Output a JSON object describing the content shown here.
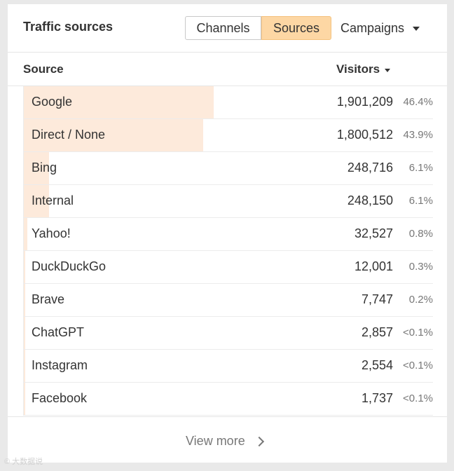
{
  "header": {
    "title": "Traffic sources",
    "tabs": [
      {
        "label": "Channels",
        "active": false
      },
      {
        "label": "Sources",
        "active": true
      }
    ],
    "more_label": "Campaigns",
    "active_color": "#fdd7a4"
  },
  "table": {
    "columns": {
      "source": "Source",
      "visitors": "Visitors"
    },
    "sort": "visitors-desc",
    "bar_color": "#fdeadb",
    "rows": [
      {
        "name": "Google",
        "visitors": "1,901,209",
        "pct": "46.4%",
        "share": 46.4
      },
      {
        "name": "Direct / None",
        "visitors": "1,800,512",
        "pct": "43.9%",
        "share": 43.9
      },
      {
        "name": "Bing",
        "visitors": "248,716",
        "pct": "6.1%",
        "share": 6.1
      },
      {
        "name": "Internal",
        "visitors": "248,150",
        "pct": "6.1%",
        "share": 6.1
      },
      {
        "name": "Yahoo!",
        "visitors": "32,527",
        "pct": "0.8%",
        "share": 0.8
      },
      {
        "name": "DuckDuckGo",
        "visitors": "12,001",
        "pct": "0.3%",
        "share": 0.3
      },
      {
        "name": "Brave",
        "visitors": "7,747",
        "pct": "0.2%",
        "share": 0.2
      },
      {
        "name": "ChatGPT",
        "visitors": "2,857",
        "pct": "<0.1%",
        "share": 0.07
      },
      {
        "name": "Instagram",
        "visitors": "2,554",
        "pct": "<0.1%",
        "share": 0.06
      },
      {
        "name": "Facebook",
        "visitors": "1,737",
        "pct": "<0.1%",
        "share": 0.04
      }
    ]
  },
  "footer": {
    "view_more_label": "View more"
  },
  "watermark": "© 大数据说"
}
